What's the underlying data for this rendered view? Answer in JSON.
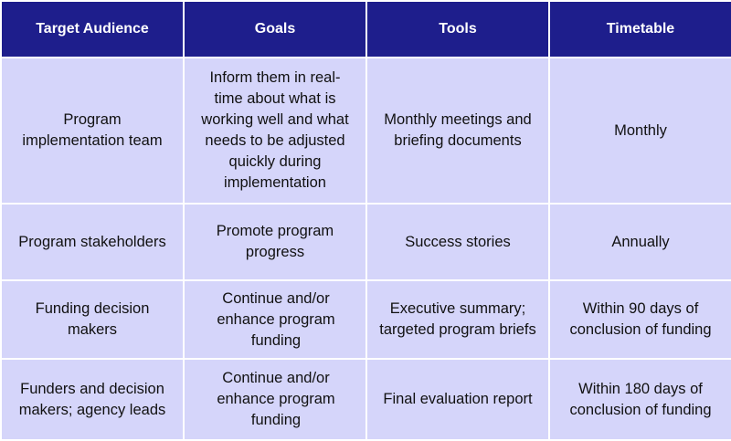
{
  "headers": [
    "Target Audience",
    "Goals",
    "Tools",
    "Timetable"
  ],
  "rows": [
    {
      "audience": "Program implementation team",
      "goals": "Inform them in real-time about what is working well and what needs to be adjusted quickly during implementation",
      "tools": "Monthly meetings and briefing documents",
      "timetable": "Monthly"
    },
    {
      "audience": "Program stakeholders",
      "goals": "Promote program progress",
      "tools": "Success stories",
      "timetable": "Annually"
    },
    {
      "audience": "Funding decision makers",
      "goals": "Continue and/or enhance program funding",
      "tools": "Executive summary; targeted program briefs",
      "timetable": "Within 90 days of conclusion of funding"
    },
    {
      "audience": "Funders and decision makers; agency leads",
      "goals": "Continue and/or enhance program funding",
      "tools": "Final evaluation report",
      "timetable": "Within 180 days of conclusion of funding"
    }
  ],
  "colors": {
    "header_bg": "#1e1e8c",
    "header_text": "#ffffff",
    "cell_bg": "#d5d5fa",
    "cell_text": "#111111",
    "grid_lines": "#ffffff"
  }
}
